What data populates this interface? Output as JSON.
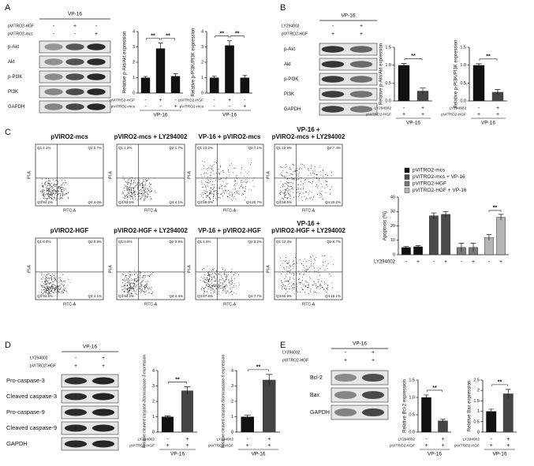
{
  "panels": [
    "A",
    "B",
    "C",
    "D",
    "E"
  ],
  "blots": [
    {
      "group": "VP-16",
      "conditions": [
        {
          "name": "pVITRO2-HGF",
          "values": [
            "-",
            "+",
            "-"
          ]
        },
        {
          "name": "pVITRO2-mcs",
          "values": [
            "-",
            "-",
            "+"
          ]
        }
      ],
      "rows": [
        "p-Akt",
        "Akt",
        "p-PI3K",
        "PI3K",
        "GAPDH"
      ]
    },
    {
      "group": "VP-16",
      "conditions": [
        {
          "name": "LY294002",
          "values": [
            "-",
            "+"
          ]
        },
        {
          "name": "pVITRO2-HGF",
          "values": [
            "+",
            "+"
          ]
        }
      ],
      "rows": [
        "p-Akt",
        "Akt",
        "p-PI3K",
        "PI3K",
        "GAPDH"
      ]
    },
    {
      "group": "VP-16",
      "conditions": [
        {
          "name": "LY294002",
          "values": [
            "-",
            "+"
          ]
        },
        {
          "name": "pVITRO2-HGF",
          "values": [
            "+",
            "+"
          ]
        }
      ],
      "rows": [
        "Pro-caspase-3",
        "Cleaved caspase-3",
        "Pro-caspase-9",
        "Cleaved caspase-9",
        "GAPDH"
      ]
    },
    {
      "group": "VP-16",
      "conditions": [
        {
          "name": "LY294002",
          "values": [
            "-",
            "+"
          ]
        },
        {
          "name": "pVITRO2-HGF",
          "values": [
            "+",
            "+"
          ]
        }
      ],
      "rows": [
        "Bcl-2",
        "Bax",
        "GAPDH"
      ]
    }
  ],
  "flow": {
    "x_label": "FITC-A",
    "y_label": "PI-A",
    "plots": [
      {
        "title": [
          "pVIRO2-mcs"
        ],
        "quadrants": [
          "Q1:1.1%",
          "Q2:0.7%",
          "Q3:94.2%",
          "Q4:4.0%"
        ]
      },
      {
        "title": [
          "pVIRO2-mcs + LY294002"
        ],
        "quadrants": [
          "Q1:1.2%",
          "Q2:1.7%",
          "Q3:93.0%",
          "Q4:4.1%"
        ]
      },
      {
        "title": [
          "VP-16 + pVIRO2-mcs"
        ],
        "quadrants": [
          "Q1:13.2%",
          "Q2:7.1%",
          "Q3:59.0%",
          "Q4:20.7%"
        ]
      },
      {
        "title": [
          "VP-16 +",
          "pVIRO2-mcs + LY294002"
        ],
        "quadrants": [
          "Q1:12.9%",
          "Q2:7.4%",
          "Q3:59.5%",
          "Q4:20.2%"
        ]
      },
      {
        "title": [
          "pVIRO2-HGF"
        ],
        "quadrants": [
          "Q1:0.4%",
          "Q2:0.9%",
          "Q3:94.6%",
          "Q4:4.1%"
        ]
      },
      {
        "title": [
          "pVIRO2-HGF + LY294002"
        ],
        "quadrants": [
          "Q1:0.5%",
          "Q2:0.9%",
          "Q3:94.2%",
          "Q4:4.4%"
        ]
      },
      {
        "title": [
          "VP-16 + pVIRO2-HGF"
        ],
        "quadrants": [
          "Q1:1.5%",
          "Q2:3.2%",
          "Q3:87.6%",
          "Q4:7.7%"
        ]
      },
      {
        "title": [
          "VP-16 +",
          "pVIRO2-HGF + LY294002"
        ],
        "quadrants": [
          "Q1:12.3%",
          "Q2:8.7%",
          "Q3:60.9%",
          "Q4:18.1%"
        ]
      }
    ]
  },
  "chart_data": [
    {
      "type": "bar",
      "y_label": "Relative p-Akt/Akt expression",
      "values": [
        1.0,
        2.9,
        1.1
      ],
      "errors": [
        0.08,
        0.35,
        0.15
      ],
      "colors": [
        "#111111",
        "#111111",
        "#111111"
      ],
      "ylim": [
        0,
        4
      ],
      "yticks": [
        0,
        1,
        2,
        3,
        4
      ],
      "conditions": [
        {
          "name": "pVITRO2-HGF",
          "values": [
            "-",
            "+",
            "-"
          ]
        },
        {
          "name": "pVITRO2-mcs",
          "values": [
            "-",
            "-",
            "+"
          ]
        }
      ],
      "group_label": "VP-16",
      "annotations": [
        "**",
        "**"
      ]
    },
    {
      "type": "bar",
      "y_label": "Relative p-PI3K/PI3K expression",
      "values": [
        1.0,
        3.1,
        1.0
      ],
      "errors": [
        0.1,
        0.3,
        0.15
      ],
      "colors": [
        "#111111",
        "#111111",
        "#111111"
      ],
      "ylim": [
        0,
        4
      ],
      "yticks": [
        0,
        1,
        2,
        3,
        4
      ],
      "conditions": [
        {
          "name": "pVITRO2-HGF",
          "values": [
            "-",
            "+",
            "-"
          ]
        },
        {
          "name": "pVITRO2-mcs",
          "values": [
            "-",
            "-",
            "+"
          ]
        }
      ],
      "group_label": "VP-16",
      "annotations": [
        "**",
        "**"
      ]
    },
    {
      "type": "bar",
      "y_label": "Relative p-Akt/Akt expression",
      "values": [
        1.0,
        0.28
      ],
      "errors": [
        0.05,
        0.08
      ],
      "colors": [
        "#111111",
        "#444444"
      ],
      "ylim": [
        0,
        1.5
      ],
      "yticks": [
        {
          "value": 0,
          "label": "0.0"
        },
        0.5,
        {
          "value": 1,
          "label": "1.0"
        },
        1.5
      ],
      "conditions": [
        {
          "name": "LY294002",
          "values": [
            "-",
            "+"
          ]
        },
        {
          "name": "pVITRO2-HGF",
          "values": [
            "+",
            "+"
          ]
        }
      ],
      "group_label": "VP-16",
      "annotations": [
        "**"
      ]
    },
    {
      "type": "bar",
      "y_label": "Relative p-PI3K/PI3K expression",
      "values": [
        1.0,
        0.25
      ],
      "errors": [
        0.04,
        0.07
      ],
      "colors": [
        "#111111",
        "#444444"
      ],
      "ylim": [
        0,
        1.5
      ],
      "yticks": [
        {
          "value": 0,
          "label": "0.0"
        },
        0.5,
        {
          "value": 1,
          "label": "1.0"
        },
        1.5
      ],
      "conditions": [
        {
          "name": "LY294002",
          "values": [
            "-",
            "+"
          ]
        },
        {
          "name": "pVITRO2-HGF",
          "values": [
            "+",
            "+"
          ]
        }
      ],
      "group_label": "VP-16",
      "annotations": [
        "**"
      ]
    },
    {
      "type": "grouped_bar",
      "y_label": "Apoptosis (%)",
      "categories": [
        "-",
        "+"
      ],
      "x_row_label": "LY294002",
      "ylim": [
        0,
        40
      ],
      "yticks": [
        0,
        10,
        20,
        30,
        40
      ],
      "series": [
        {
          "name": "pVITRO2-mcs",
          "color": "#111111",
          "values": [
            5,
            5.5
          ],
          "errors": [
            0.8,
            0.8
          ]
        },
        {
          "name": "pVITRO2-mcs + VP-16",
          "color": "#4a4a4a",
          "values": [
            27,
            28
          ],
          "errors": [
            2,
            2
          ]
        },
        {
          "name": "pVITRO2-HGF",
          "color": "#7a7a7a",
          "values": [
            5,
            5
          ],
          "errors": [
            3,
            3
          ]
        },
        {
          "name": "pVITRO2-HGF + VP-16",
          "color": "#b5b5b5",
          "values": [
            12,
            26
          ],
          "errors": [
            2,
            2
          ]
        }
      ],
      "annotations": [
        "**"
      ]
    },
    {
      "type": "bar",
      "y_label": "Relative cleaved caspase-3/procaspase-3 expression",
      "values": [
        1.0,
        2.7
      ],
      "errors": [
        0.05,
        0.25
      ],
      "colors": [
        "#111111",
        "#444444"
      ],
      "ylim": [
        0,
        4
      ],
      "yticks": [
        0,
        1,
        2,
        3,
        4
      ],
      "conditions": [
        {
          "name": "LY294002",
          "values": [
            "-",
            "+"
          ]
        },
        {
          "name": "pVITRO2-HGF",
          "values": [
            "+",
            "+"
          ]
        }
      ],
      "group_label": "VP-16",
      "annotations": [
        "**"
      ]
    },
    {
      "type": "bar",
      "y_label": "Relative cleaved caspase-9/procaspase-9 expression",
      "values": [
        1.0,
        3.4
      ],
      "errors": [
        0.1,
        0.35
      ],
      "colors": [
        "#111111",
        "#444444"
      ],
      "ylim": [
        0,
        4
      ],
      "yticks": [
        0,
        1,
        2,
        3,
        4
      ],
      "conditions": [
        {
          "name": "LY294002",
          "values": [
            "-",
            "+"
          ]
        },
        {
          "name": "pVITRO2-HGF",
          "values": [
            "+",
            "+"
          ]
        }
      ],
      "group_label": "VP-16",
      "annotations": [
        "**"
      ]
    },
    {
      "type": "bar",
      "y_label": "Relative Bcl-2 expression",
      "values": [
        1.0,
        0.33
      ],
      "errors": [
        0.07,
        0.04
      ],
      "colors": [
        "#111111",
        "#444444"
      ],
      "ylim": [
        0,
        1.5
      ],
      "yticks": [
        {
          "value": 0,
          "label": "0.0"
        },
        0.5,
        {
          "value": 1,
          "label": "1.0"
        },
        1.5
      ],
      "conditions": [
        {
          "name": "LY294002",
          "values": [
            "-",
            "+"
          ]
        },
        {
          "name": "pVITRO2-HGF",
          "values": [
            "+",
            "+"
          ]
        }
      ],
      "group_label": "VP-16",
      "annotations": [
        "**"
      ]
    },
    {
      "type": "bar",
      "y_label": "Relative Bax expression",
      "values": [
        1.0,
        1.85
      ],
      "errors": [
        0.1,
        0.2
      ],
      "colors": [
        "#111111",
        "#444444"
      ],
      "ylim": [
        0,
        2.5
      ],
      "yticks": [
        0,
        0.5,
        1,
        1.5,
        2,
        2.5
      ],
      "conditions": [
        {
          "name": "LY294002",
          "values": [
            "-",
            "+"
          ]
        },
        {
          "name": "pVITRO2-HGF",
          "values": [
            "+",
            "+"
          ]
        }
      ],
      "group_label": "VP-16",
      "annotations": [
        "**"
      ]
    }
  ]
}
